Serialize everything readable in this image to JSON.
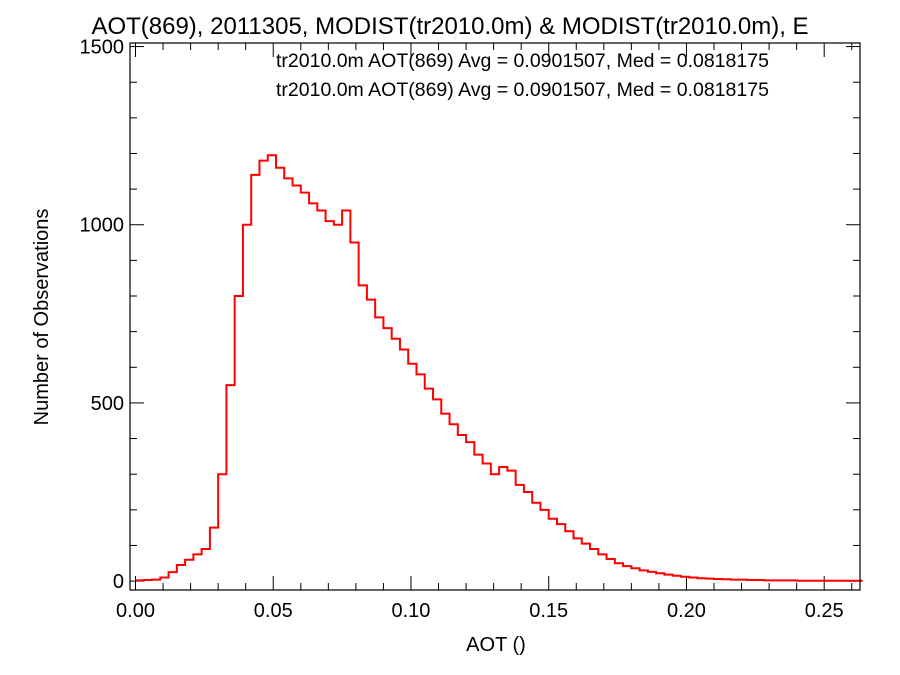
{
  "chart_data": {
    "type": "histogram",
    "title": "AOT(869), 2011305, MODIST(tr2010.0m) & MODIST(tr2010.0m), E",
    "xlabel": "AOT ()",
    "ylabel": "Number of Observations",
    "xlim": [
      -0.002,
      0.263
    ],
    "ylim": [
      -25,
      1510
    ],
    "x_ticks": [
      0.0,
      0.05,
      0.1,
      0.15,
      0.2,
      0.25
    ],
    "x_tick_labels": [
      "0.00",
      "0.05",
      "0.10",
      "0.15",
      "0.20",
      "0.25"
    ],
    "y_ticks": [
      0,
      500,
      1000,
      1500
    ],
    "y_tick_labels": [
      "0",
      "500",
      "1000",
      "1500"
    ],
    "legend": [
      {
        "text": "tr2010.0m AOT(869) Avg = 0.0901507, Med = 0.0818175",
        "color": "#000000"
      },
      {
        "text": "tr2010.0m AOT(869) Avg = 0.0901507, Med = 0.0818175",
        "color": "#ff0000"
      }
    ],
    "series": [
      {
        "color": "#ff0000",
        "x": [
          0.0,
          0.003,
          0.006,
          0.009,
          0.012,
          0.015,
          0.018,
          0.021,
          0.024,
          0.027,
          0.03,
          0.033,
          0.036,
          0.039,
          0.042,
          0.045,
          0.048,
          0.051,
          0.054,
          0.057,
          0.06,
          0.063,
          0.066,
          0.069,
          0.072,
          0.075,
          0.078,
          0.081,
          0.084,
          0.087,
          0.09,
          0.093,
          0.096,
          0.099,
          0.102,
          0.105,
          0.108,
          0.111,
          0.114,
          0.117,
          0.12,
          0.123,
          0.126,
          0.129,
          0.132,
          0.135,
          0.138,
          0.141,
          0.144,
          0.147,
          0.15,
          0.153,
          0.156,
          0.159,
          0.162,
          0.165,
          0.168,
          0.171,
          0.174,
          0.177,
          0.18,
          0.183,
          0.186,
          0.189,
          0.192,
          0.195,
          0.198,
          0.201,
          0.204,
          0.207,
          0.21,
          0.213,
          0.216,
          0.219,
          0.222,
          0.225,
          0.228,
          0.231,
          0.234,
          0.237,
          0.24,
          0.243,
          0.246,
          0.249,
          0.252,
          0.255,
          0.258,
          0.261
        ],
        "values": [
          2,
          3,
          4,
          10,
          25,
          45,
          60,
          75,
          90,
          150,
          300,
          550,
          800,
          1000,
          1140,
          1180,
          1195,
          1160,
          1130,
          1110,
          1090,
          1060,
          1040,
          1010,
          1000,
          1040,
          950,
          830,
          790,
          740,
          710,
          680,
          650,
          610,
          580,
          540,
          510,
          470,
          440,
          410,
          390,
          355,
          330,
          300,
          320,
          310,
          270,
          250,
          220,
          200,
          175,
          160,
          140,
          120,
          105,
          90,
          75,
          62,
          50,
          42,
          36,
          30,
          26,
          22,
          18,
          15,
          12,
          10,
          8,
          7,
          6,
          5,
          4,
          4,
          3,
          3,
          2,
          2,
          2,
          2,
          1,
          1,
          1,
          1,
          1,
          1,
          1,
          1
        ]
      }
    ]
  }
}
